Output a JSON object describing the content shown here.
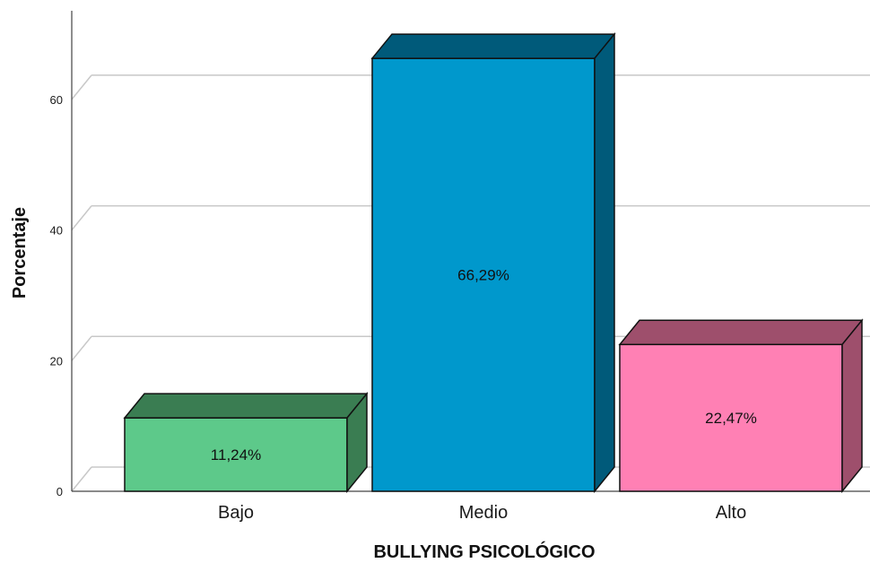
{
  "chart_data": {
    "type": "bar",
    "style": "3d",
    "title": "",
    "xlabel": "BULLYING PSICOLÓGICO",
    "ylabel": "Porcentaje",
    "categories": [
      "Bajo",
      "Medio",
      "Alto"
    ],
    "values": [
      11.24,
      66.29,
      22.47
    ],
    "data_labels": [
      "11,24%",
      "66,29%",
      "22,47%"
    ],
    "colors": [
      "#5dc98a",
      "#0098cc",
      "#ff80b4"
    ],
    "side_colors": [
      "#3a7d52",
      "#005a7a",
      "#9e4f6c"
    ],
    "y_ticks": [
      "0",
      "20",
      "40",
      "60"
    ],
    "ylim": [
      0,
      70
    ],
    "grid": true,
    "legend": "none"
  }
}
